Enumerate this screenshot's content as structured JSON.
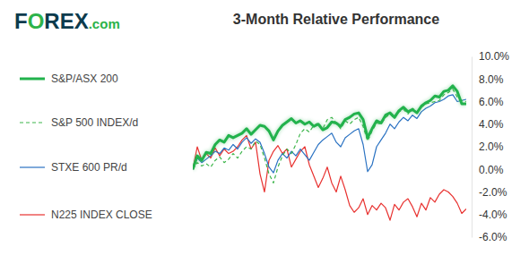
{
  "chart_data": {
    "type": "line",
    "logo": "FOREX.com",
    "title": "3-Month Relative Performance",
    "categories": [
      null,
      null,
      null,
      null,
      null,
      null,
      null,
      null,
      null,
      null,
      null,
      null,
      null,
      null,
      null,
      null,
      null,
      null,
      null,
      null,
      null,
      null,
      null,
      null,
      null,
      null,
      null,
      null,
      null,
      null,
      null,
      null,
      null,
      null,
      null,
      null,
      null,
      null,
      null,
      null,
      null,
      null,
      null,
      null,
      null,
      null,
      null,
      null,
      null,
      null,
      null,
      null,
      null,
      null,
      null,
      null,
      null,
      null,
      null,
      null,
      null,
      null
    ],
    "series": [
      {
        "name": "S&P/ASX 200",
        "color": "#22b24c",
        "line_style": "solid",
        "values": [
          0,
          1.2,
          0.8,
          1.5,
          1.4,
          2.2,
          2.6,
          2.4,
          3.0,
          2.8,
          3.0,
          3.2,
          3.6,
          3.1,
          3.5,
          3.9,
          3.8,
          3.4,
          2.6,
          3.4,
          3.9,
          4.2,
          4.5,
          4.1,
          4.3,
          4.0,
          4.2,
          3.8,
          4.0,
          3.5,
          3.7,
          4.2,
          4.1,
          3.8,
          4.4,
          4.6,
          4.9,
          5.0,
          4.4,
          2.8,
          3.6,
          4.3,
          4.1,
          4.8,
          5.0,
          4.6,
          5.2,
          5.5,
          5.1,
          5.3,
          5.0,
          5.6,
          5.9,
          6.1,
          6.5,
          6.4,
          6.9,
          7.0,
          7.4,
          6.9,
          5.8,
          5.8
        ]
      },
      {
        "name": "S&P 500 INDEX/d",
        "color": "#3cb54a",
        "line_style": "dashed",
        "values": [
          0,
          0.6,
          0.3,
          0.5,
          0.2,
          0.8,
          1.1,
          0.6,
          0.9,
          1.4,
          1.0,
          1.6,
          2.0,
          1.8,
          2.5,
          2.2,
          1.0,
          -0.4,
          -1.2,
          0.2,
          1.2,
          1.8,
          1.4,
          2.2,
          3.2,
          3.6,
          3.3,
          3.9,
          4.1,
          3.6,
          4.4,
          4.6,
          4.1,
          3.6,
          4.3,
          4.0,
          4.4,
          4.6,
          3.8,
          2.5,
          3.4,
          4.1,
          4.0,
          4.6,
          4.9,
          4.5,
          5.1,
          5.3,
          4.9,
          5.4,
          5.1,
          5.5,
          5.8,
          5.9,
          6.0,
          6.1,
          6.6,
          6.8,
          7.1,
          6.4,
          6.1,
          6.0
        ]
      },
      {
        "name": "STXE 600 PR/d",
        "color": "#2a72c2",
        "line_style": "solid",
        "values": [
          0,
          1.0,
          0.6,
          0.9,
          1.2,
          1.6,
          1.4,
          1.9,
          1.7,
          2.2,
          1.8,
          2.4,
          2.8,
          2.3,
          2.7,
          2.4,
          1.4,
          0.2,
          -0.3,
          0.8,
          1.4,
          1.0,
          1.6,
          1.2,
          1.8,
          1.3,
          0.8,
          1.5,
          2.2,
          2.6,
          2.9,
          3.2,
          2.4,
          2.0,
          2.8,
          3.1,
          3.4,
          3.6,
          2.2,
          -0.2,
          0.4,
          2.0,
          2.6,
          3.2,
          4.0,
          3.6,
          4.2,
          4.6,
          4.3,
          4.8,
          4.5,
          5.1,
          5.4,
          5.6,
          5.9,
          6.0,
          6.2,
          6.5,
          6.6,
          6.0,
          6.1,
          6.2
        ]
      },
      {
        "name": "N225 INDEX CLOSE",
        "color": "#e8312f",
        "line_style": "solid",
        "values": [
          0,
          2.0,
          0.8,
          1.4,
          1.0,
          1.9,
          1.2,
          1.8,
          1.4,
          1.6,
          2.0,
          2.6,
          3.0,
          1.8,
          2.4,
          -0.4,
          -2.0,
          0.8,
          1.6,
          2.1,
          1.4,
          1.8,
          0.2,
          0.9,
          1.6,
          2.0,
          0.4,
          -0.6,
          -1.6,
          -0.8,
          0.2,
          -1.2,
          -2.0,
          -0.6,
          -1.8,
          -3.2,
          -3.8,
          -3.4,
          -2.6,
          -4.0,
          -3.2,
          -3.6,
          -3.0,
          -3.4,
          -4.5,
          -3.1,
          -3.6,
          -2.9,
          -2.6,
          -3.3,
          -4.2,
          -3.0,
          -3.6,
          -2.5,
          -2.9,
          -2.2,
          -1.8,
          -2.0,
          -2.4,
          -3.0,
          -3.9,
          -3.5
        ]
      }
    ],
    "ylim": [
      -6,
      10
    ],
    "yticks": [
      {
        "value": 10,
        "label": "10.0%"
      },
      {
        "value": 8,
        "label": "8.0%"
      },
      {
        "value": 6,
        "label": "6.0%"
      },
      {
        "value": 4,
        "label": "4.0%"
      },
      {
        "value": 2,
        "label": "2.0%"
      },
      {
        "value": 0,
        "label": "0.0%"
      },
      {
        "value": -2,
        "label": "-2.0%"
      },
      {
        "value": -4,
        "label": "-4.0%"
      },
      {
        "value": -6,
        "label": "-6.0%"
      }
    ],
    "tick_labels": "y",
    "grid": false,
    "legend": "left"
  }
}
